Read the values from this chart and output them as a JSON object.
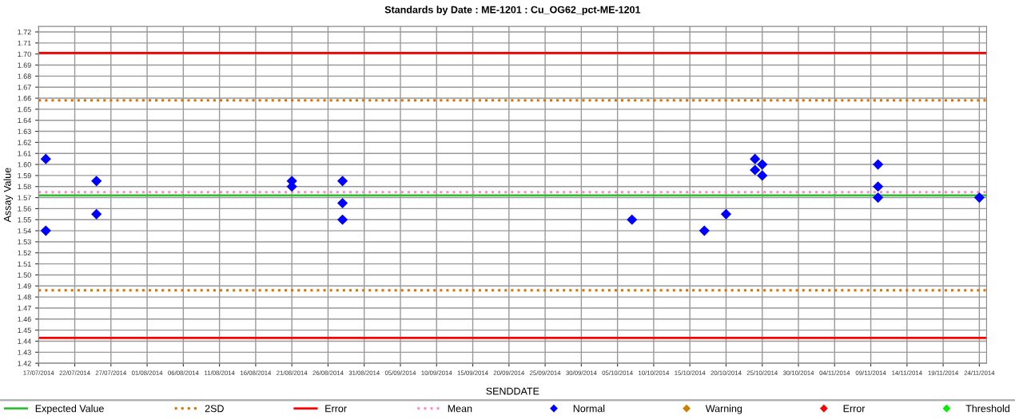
{
  "chart_data": {
    "type": "scatter",
    "title": "Standards by Date : ME-1201 : Cu_OG62_pct-ME-1201",
    "xlabel": "SENDDATE",
    "ylabel": "Assay Value",
    "series": [
      {
        "name": "Normal",
        "color": "#0000ff",
        "x": [
          "2014-07-18",
          "2014-07-18",
          "2014-07-25",
          "2014-07-25",
          "2014-08-21",
          "2014-08-21",
          "2014-08-28",
          "2014-08-28",
          "2014-08-28",
          "2014-10-07",
          "2014-10-17",
          "2014-10-20",
          "2014-10-24",
          "2014-10-24",
          "2014-10-25",
          "2014-10-25",
          "2014-11-10",
          "2014-11-10",
          "2014-11-10",
          "2014-11-24"
        ],
        "values": [
          1.605,
          1.54,
          1.585,
          1.555,
          1.585,
          1.58,
          1.585,
          1.565,
          1.55,
          1.55,
          1.54,
          1.555,
          1.605,
          1.595,
          1.6,
          1.59,
          1.6,
          1.58,
          1.57,
          1.57
        ]
      },
      {
        "name": "Warning",
        "color": "#cc8000"
      },
      {
        "name": "Error",
        "color": "#ff0000"
      },
      {
        "name": "Threshold",
        "color": "#00ee00"
      }
    ],
    "marker": "diamond",
    "ref_lines": [
      {
        "axis": "y",
        "value": 1.572,
        "label": "Expected Value",
        "color": "#33bb33",
        "line_style": "solid"
      },
      {
        "axis": "y",
        "value": 1.658,
        "label": "2SD",
        "color": "#dd7000",
        "line_style": "dotted"
      },
      {
        "axis": "y",
        "value": 1.486,
        "color": "#dd7000",
        "line_style": "dotted"
      },
      {
        "axis": "y",
        "value": 1.701,
        "label": "Error",
        "color": "#ff0000",
        "line_style": "solid"
      },
      {
        "axis": "y",
        "value": 1.443,
        "color": "#ff0000",
        "line_style": "solid"
      },
      {
        "axis": "y",
        "value": 1.575,
        "label": "Mean",
        "color": "#ff88cc",
        "line_style": "dotted"
      }
    ],
    "xlim": [
      "2014-07-17",
      "2014-11-25"
    ],
    "xticks": [
      {
        "value": "2014-07-17",
        "label": "17/07/2014"
      },
      {
        "value": "2014-07-22",
        "label": "22/07/2014"
      },
      {
        "value": "2014-07-27",
        "label": "27/07/2014"
      },
      {
        "value": "2014-08-01",
        "label": "01/08/2014"
      },
      {
        "value": "2014-08-06",
        "label": "06/08/2014"
      },
      {
        "value": "2014-08-11",
        "label": "11/08/2014"
      },
      {
        "value": "2014-08-16",
        "label": "16/08/2014"
      },
      {
        "value": "2014-08-21",
        "label": "21/08/2014"
      },
      {
        "value": "2014-08-26",
        "label": "26/08/2014"
      },
      {
        "value": "2014-08-31",
        "label": "31/08/2014"
      },
      {
        "value": "2014-09-05",
        "label": "05/09/2014"
      },
      {
        "value": "2014-09-10",
        "label": "10/09/2014"
      },
      {
        "value": "2014-09-15",
        "label": "15/09/2014"
      },
      {
        "value": "2014-09-20",
        "label": "20/09/2014"
      },
      {
        "value": "2014-09-25",
        "label": "25/09/2014"
      },
      {
        "value": "2014-09-30",
        "label": "30/09/2014"
      },
      {
        "value": "2014-10-05",
        "label": "05/10/2014"
      },
      {
        "value": "2014-10-10",
        "label": "10/10/2014"
      },
      {
        "value": "2014-10-15",
        "label": "15/10/2014"
      },
      {
        "value": "2014-10-20",
        "label": "20/10/2014"
      },
      {
        "value": "2014-10-25",
        "label": "25/10/2014"
      },
      {
        "value": "2014-10-30",
        "label": "30/10/2014"
      },
      {
        "value": "2014-11-04",
        "label": "04/11/2014"
      },
      {
        "value": "2014-11-09",
        "label": "09/11/2014"
      },
      {
        "value": "2014-11-14",
        "label": "14/11/2014"
      },
      {
        "value": "2014-11-19",
        "label": "19/11/2014"
      },
      {
        "value": "2014-11-24",
        "label": "24/11/2014"
      }
    ],
    "ylim": [
      1.42,
      1.725
    ],
    "yticks": [
      {
        "value": 1.42,
        "label": "1.42"
      },
      {
        "value": 1.43,
        "label": "1.43"
      },
      {
        "value": 1.44,
        "label": "1.44"
      },
      {
        "value": 1.45,
        "label": "1.45"
      },
      {
        "value": 1.46,
        "label": "1.46"
      },
      {
        "value": 1.47,
        "label": "1.47"
      },
      {
        "value": 1.48,
        "label": "1.48"
      },
      {
        "value": 1.49,
        "label": "1.49"
      },
      {
        "value": 1.5,
        "label": "1.50"
      },
      {
        "value": 1.51,
        "label": "1.51"
      },
      {
        "value": 1.52,
        "label": "1.52"
      },
      {
        "value": 1.53,
        "label": "1.53"
      },
      {
        "value": 1.54,
        "label": "1.54"
      },
      {
        "value": 1.55,
        "label": "1.55"
      },
      {
        "value": 1.56,
        "label": "1.56"
      },
      {
        "value": 1.57,
        "label": "1.57"
      },
      {
        "value": 1.58,
        "label": "1.58"
      },
      {
        "value": 1.59,
        "label": "1.59"
      },
      {
        "value": 1.6,
        "label": "1.60"
      },
      {
        "value": 1.61,
        "label": "1.61"
      },
      {
        "value": 1.62,
        "label": "1.62"
      },
      {
        "value": 1.63,
        "label": "1.63"
      },
      {
        "value": 1.64,
        "label": "1.64"
      },
      {
        "value": 1.65,
        "label": "1.65"
      },
      {
        "value": 1.66,
        "label": "1.66"
      },
      {
        "value": 1.67,
        "label": "1.67"
      },
      {
        "value": 1.68,
        "label": "1.68"
      },
      {
        "value": 1.69,
        "label": "1.69"
      },
      {
        "value": 1.7,
        "label": "1.70"
      },
      {
        "value": 1.71,
        "label": "1.71"
      },
      {
        "value": 1.72,
        "label": "1.72"
      }
    ],
    "grid": true,
    "legend": "bottom"
  }
}
